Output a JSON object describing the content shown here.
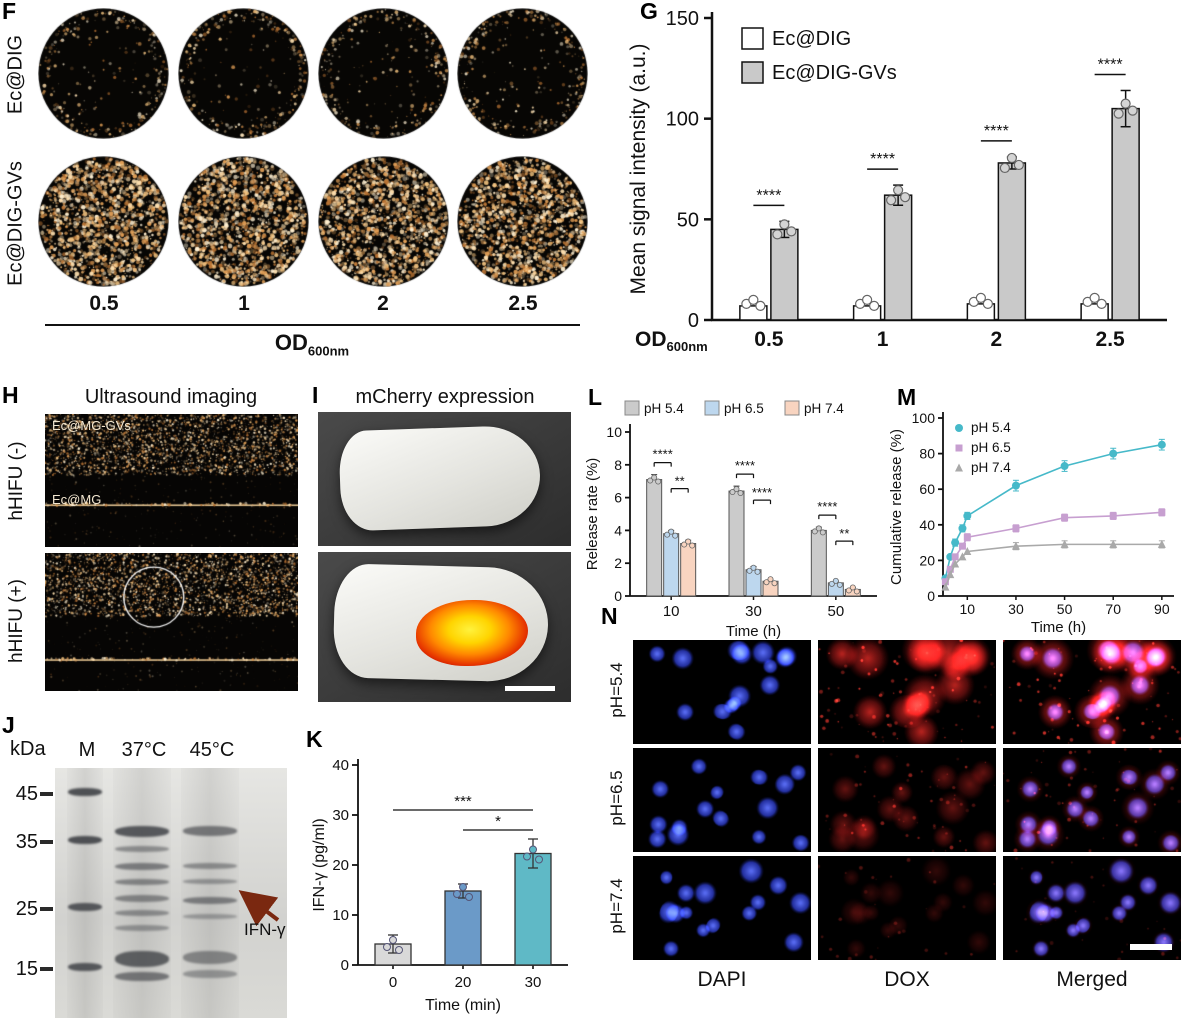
{
  "panels": {
    "F": {
      "label": "F",
      "row_labels": [
        "Ec@DIG",
        "Ec@DIG-GVs"
      ],
      "od_values": [
        "0.5",
        "1",
        "2",
        "2.5"
      ],
      "axis_main": "OD",
      "axis_sub": "600nm"
    },
    "G": {
      "label": "G"
    },
    "H": {
      "label": "H",
      "title": "Ultrasound imaging",
      "row_labels": [
        "hHIFU (-)",
        "hHIFU (+)"
      ],
      "image_labels": [
        "Ec@MG-GVs",
        "Ec@MG"
      ]
    },
    "I": {
      "label": "I",
      "title": "mCherry expression"
    },
    "J": {
      "label": "J",
      "unit_label": "kDa",
      "lane_labels": [
        "M",
        "37°C",
        "45°C"
      ],
      "marker_labels": [
        "45",
        "35",
        "25",
        "15"
      ],
      "arrow_label": "IFN-γ"
    },
    "K": {
      "label": "K"
    },
    "L": {
      "label": "L"
    },
    "M": {
      "label": "M"
    },
    "N": {
      "label": "N",
      "row_labels": [
        "pH=5.4",
        "pH=6.5",
        "pH=7.4"
      ],
      "col_labels": [
        "DAPI",
        "DOX",
        "Merged"
      ]
    }
  },
  "chart_data": [
    {
      "id": "G",
      "type": "bar",
      "categories": [
        "0.5",
        "1",
        "2",
        "2.5"
      ],
      "series": [
        {
          "name": "Ec@DIG",
          "color": "#ffffff",
          "values": [
            7,
            7,
            8,
            8
          ],
          "errors": [
            0,
            0,
            0,
            0
          ]
        },
        {
          "name": "Ec@DIG-GVs",
          "color": "#c9c9c9",
          "values": [
            45,
            62,
            78,
            105
          ],
          "errors": [
            4,
            5,
            3,
            9
          ]
        }
      ],
      "significance": [
        "****",
        "****",
        "****",
        "****"
      ],
      "ylabel": "Mean signal intensity (a.u.)",
      "xlabel_main": "OD",
      "xlabel_sub": "600nm",
      "ylim": [
        0,
        150
      ],
      "yticks": [
        0,
        50,
        100,
        150
      ],
      "legend_position": "top-left",
      "grid": false
    },
    {
      "id": "L",
      "type": "bar",
      "categories": [
        "10",
        "30",
        "50"
      ],
      "series": [
        {
          "name": "pH 5.4",
          "color": "#cbcbcb",
          "values": [
            7.1,
            6.4,
            4.0
          ],
          "errors": [
            0.3,
            0.3,
            0.2
          ]
        },
        {
          "name": "pH 6.5",
          "color": "#bdd7ee",
          "values": [
            3.8,
            1.6,
            0.8
          ],
          "errors": [
            0.2,
            0.2,
            0.1
          ]
        },
        {
          "name": "pH 7.4",
          "color": "#f8d4c0",
          "values": [
            3.2,
            0.9,
            0.4
          ],
          "errors": [
            0.2,
            0.1,
            0.1
          ]
        }
      ],
      "significance_top": [
        "****",
        "****",
        "****"
      ],
      "significance_inner": [
        "**",
        "****",
        "**"
      ],
      "ylabel": "Release rate (%)",
      "xlabel": "Time (h)",
      "ylim": [
        0,
        10
      ],
      "yticks": [
        0,
        2,
        4,
        6,
        8,
        10
      ],
      "legend_position": "top",
      "grid": false
    },
    {
      "id": "M",
      "type": "line",
      "x": [
        1,
        3,
        5,
        8,
        10,
        30,
        50,
        70,
        90
      ],
      "series": [
        {
          "name": "pH 5.4",
          "color": "#46b9c9",
          "marker": "circle",
          "values": [
            10,
            22,
            30,
            38,
            45,
            62,
            73,
            80,
            85
          ],
          "errors": [
            1,
            1,
            2,
            2,
            2,
            3,
            3,
            3,
            3
          ]
        },
        {
          "name": "pH 6.5",
          "color": "#c79fd0",
          "marker": "square",
          "values": [
            8,
            15,
            22,
            28,
            33,
            38,
            44,
            45,
            47
          ],
          "errors": [
            1,
            1,
            1,
            1,
            2,
            2,
            2,
            2,
            2
          ]
        },
        {
          "name": "pH 7.4",
          "color": "#a9a9a9",
          "marker": "triangle",
          "values": [
            5,
            12,
            18,
            22,
            25,
            28,
            29,
            29,
            29
          ],
          "errors": [
            1,
            1,
            1,
            1,
            1,
            2,
            2,
            2,
            2
          ]
        }
      ],
      "ylabel": "Cumulative release (%)",
      "xlabel": "Time (h)",
      "ylim": [
        0,
        100
      ],
      "yticks": [
        0,
        20,
        40,
        60,
        80,
        100
      ],
      "xlim": [
        0,
        95
      ],
      "xticks": [
        10,
        30,
        50,
        70,
        90
      ],
      "legend_position": "top-left",
      "grid": false
    },
    {
      "id": "K",
      "type": "bar",
      "categories": [
        "0",
        "20",
        "30"
      ],
      "values": [
        4.2,
        14.8,
        22.3
      ],
      "errors": [
        1.8,
        1.4,
        2.9
      ],
      "colors": [
        "#d9d9d9",
        "#6b9ac8",
        "#5fb9c6"
      ],
      "significance": [
        {
          "from": 0,
          "to": 2,
          "label": "***",
          "height": 31
        },
        {
          "from": 1,
          "to": 2,
          "label": "*",
          "height": 27
        }
      ],
      "ylabel": "IFN-γ (pg/ml)",
      "xlabel": "Time (min)",
      "ylim": [
        0,
        40
      ],
      "yticks": [
        0,
        10,
        20,
        30,
        40
      ],
      "grid": false
    }
  ]
}
